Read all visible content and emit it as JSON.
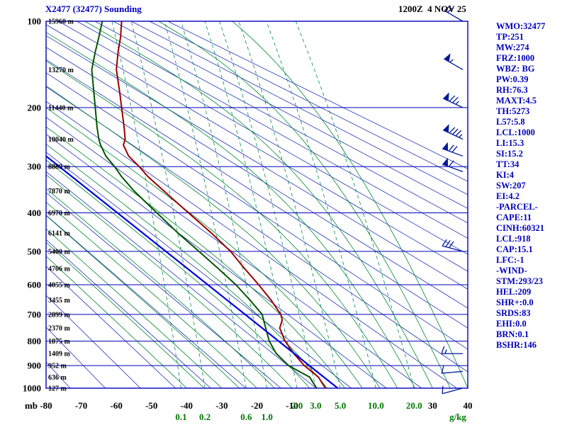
{
  "header": {
    "title": "X2477 (32477) Sounding",
    "datetime": "1200Z  4 NOV 25"
  },
  "stats": [
    "WMO:32477",
    "TP:251",
    "MW:274",
    "FRZ:1000",
    "WBZ: BG",
    "PW:0.39",
    "RH:76.3",
    "MAXT:4.5",
    "TH:5273",
    "L57:5.8",
    "LCL:1000",
    "LI:15.3",
    "SI:15.2",
    "TT:34",
    "KI:4",
    "SW:207",
    "EI:4.2",
    "-PARCEL-",
    "CAPE:11",
    "CINH:60321",
    "LCL:918",
    "CAP:15.1",
    "LFC:-1",
    "-WIND-",
    "STM:293/23",
    "HEL:209",
    "SHR+:0.0",
    "SRDS:83",
    "EHI:0.0",
    "BRN:0.1",
    "BSHR:146"
  ],
  "axes": {
    "pressure_labels": [
      100,
      200,
      300,
      400,
      500,
      600,
      700,
      800,
      900,
      1000
    ],
    "pressure_unit": "mb",
    "temp_labels": [
      -80,
      -70,
      -60,
      -50,
      -40,
      -30,
      -20,
      -10,
      30,
      40
    ],
    "mixing_labels_row1": [
      "2.0",
      "3.0",
      "5.0",
      "10.0",
      "20.0"
    ],
    "mixing_labels_row2": [
      "0.1",
      "0.2",
      "0.6",
      "1.0"
    ],
    "mixing_unit": "g/kg"
  },
  "heights": [
    {
      "p": 100,
      "label": "15960 m"
    },
    {
      "p": 150,
      "label": "13270 m"
    },
    {
      "p": 200,
      "label": "11440 m"
    },
    {
      "p": 250,
      "label": "10040 m"
    },
    {
      "p": 300,
      "label": "8880 m"
    },
    {
      "p": 350,
      "label": "7870 m"
    },
    {
      "p": 400,
      "label": "6970 m"
    },
    {
      "p": 450,
      "label": "6141 m"
    },
    {
      "p": 500,
      "label": "5400 m"
    },
    {
      "p": 550,
      "label": "4706 m"
    },
    {
      "p": 600,
      "label": "4055 m"
    },
    {
      "p": 650,
      "label": "3455 m"
    },
    {
      "p": 700,
      "label": "2899 m"
    },
    {
      "p": 750,
      "label": "2370 m"
    },
    {
      "p": 800,
      "label": "1875 m"
    },
    {
      "p": 850,
      "label": "1409 m"
    },
    {
      "p": 900,
      "label": "952 m"
    },
    {
      "p": 950,
      "label": "636 m"
    },
    {
      "p": 1000,
      "label": "127 m"
    }
  ],
  "chart_data": {
    "type": "line",
    "diagram": "stuve-sounding",
    "title": "X2477 (32477) Sounding",
    "x_range_c": [
      -80,
      40
    ],
    "p_range_mb": [
      100,
      1000
    ],
    "series": [
      {
        "name": "temperature",
        "points": [
          [
            1000,
            -0.5
          ],
          [
            975,
            -1.5
          ],
          [
            950,
            -2.5
          ],
          [
            925,
            -4.5
          ],
          [
            900,
            -6.5
          ],
          [
            850,
            -9.5
          ],
          [
            800,
            -12
          ],
          [
            750,
            -13.5
          ],
          [
            720,
            -12.8
          ],
          [
            700,
            -13.2
          ],
          [
            650,
            -16
          ],
          [
            600,
            -19.5
          ],
          [
            550,
            -23.5
          ],
          [
            500,
            -27.5
          ],
          [
            450,
            -33
          ],
          [
            400,
            -39.5
          ],
          [
            350,
            -46.5
          ],
          [
            320,
            -51
          ],
          [
            300,
            -53.5
          ],
          [
            280,
            -56.5
          ],
          [
            260,
            -58
          ],
          [
            250,
            -57.5
          ],
          [
            230,
            -57.8
          ],
          [
            200,
            -58.5
          ],
          [
            180,
            -59
          ],
          [
            150,
            -60
          ],
          [
            130,
            -59.5
          ],
          [
            115,
            -58.8
          ],
          [
            100,
            -58.5
          ]
        ]
      },
      {
        "name": "dewpoint",
        "points": [
          [
            1000,
            -3
          ],
          [
            975,
            -4
          ],
          [
            950,
            -5
          ],
          [
            925,
            -8
          ],
          [
            900,
            -11
          ],
          [
            850,
            -14.5
          ],
          [
            800,
            -16.5
          ],
          [
            750,
            -17.5
          ],
          [
            700,
            -18.5
          ],
          [
            650,
            -22
          ],
          [
            600,
            -26
          ],
          [
            550,
            -31
          ],
          [
            500,
            -36.5
          ],
          [
            450,
            -42.5
          ],
          [
            400,
            -48.5
          ],
          [
            350,
            -55
          ],
          [
            320,
            -58.5
          ],
          [
            300,
            -60.5
          ],
          [
            280,
            -63
          ],
          [
            260,
            -64.5
          ],
          [
            250,
            -65
          ],
          [
            230,
            -65.5
          ],
          [
            200,
            -66
          ],
          [
            150,
            -67
          ],
          [
            130,
            -66
          ],
          [
            115,
            -65
          ],
          [
            100,
            -64
          ]
        ]
      },
      {
        "name": "parcel",
        "points": [
          [
            1000,
            3
          ],
          [
            280,
            -80
          ]
        ]
      }
    ],
    "winds": [
      {
        "p": 100,
        "dir": 300,
        "spd": 20
      },
      {
        "p": 150,
        "dir": 300,
        "spd": 55
      },
      {
        "p": 200,
        "dir": 295,
        "spd": 75
      },
      {
        "p": 250,
        "dir": 295,
        "spd": 85
      },
      {
        "p": 280,
        "dir": 290,
        "spd": 70
      },
      {
        "p": 310,
        "dir": 290,
        "spd": 60
      },
      {
        "p": 500,
        "dir": 285,
        "spd": 30
      },
      {
        "p": 850,
        "dir": 270,
        "spd": 15
      },
      {
        "p": 925,
        "dir": 265,
        "spd": 10
      },
      {
        "p": 1000,
        "dir": 255,
        "spd": 10
      }
    ],
    "grid": {
      "isobars_mb": [
        100,
        200,
        300,
        400,
        500,
        600,
        700,
        800,
        900,
        1000
      ],
      "dry_adiabats_theta_k": {
        "start": 200,
        "end": 440,
        "step": 10
      },
      "moist_adiabats_c": {
        "start": -40,
        "end": 40,
        "step": 5
      },
      "mixing_ratio_gkg": [
        0.1,
        0.2,
        0.6,
        1,
        2,
        3,
        5,
        10,
        20
      ]
    }
  },
  "colors": {
    "frame": "#0000bb",
    "isobar": "#0000bb",
    "dry_adiabat": "#2233bb",
    "moist_adiabat": "#008833",
    "mixing_ratio": "#008855",
    "temperature": "#990000",
    "dewpoint": "#005500",
    "parcel": "#0000dd",
    "wind_barb": "#001a99",
    "stats_text": "#0000bb",
    "title_text": "#0000bb",
    "axis_text": "#000000",
    "mixing_label": "#007700"
  }
}
